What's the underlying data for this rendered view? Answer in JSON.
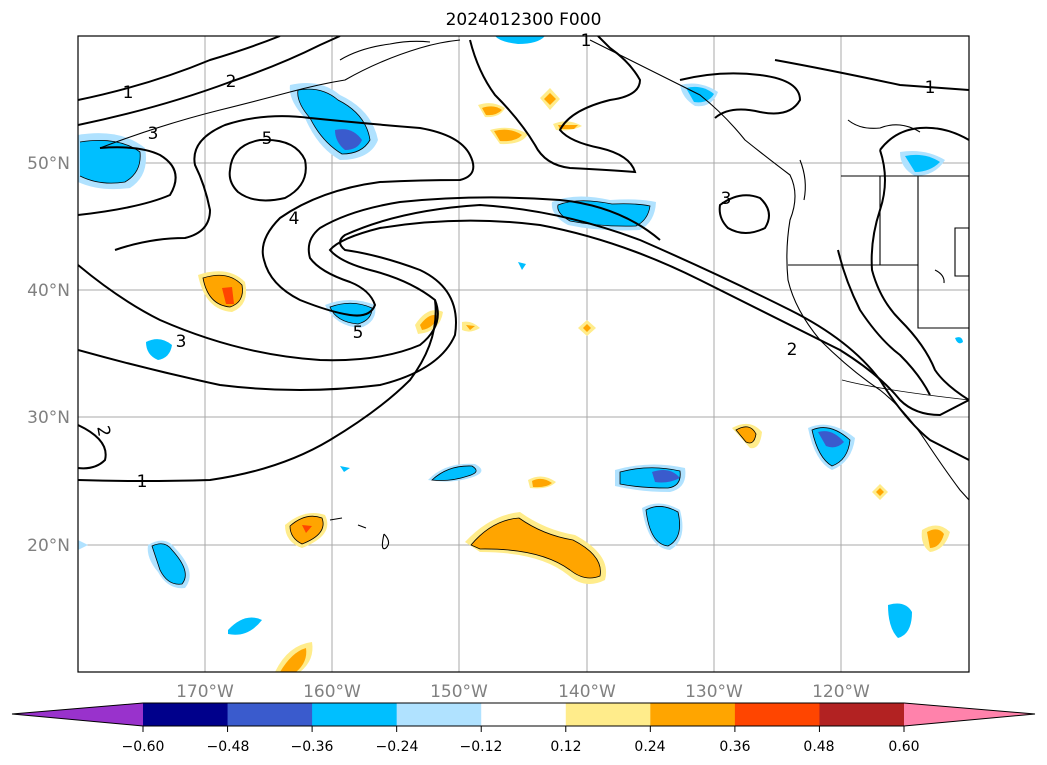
{
  "title": "2024012300 F000",
  "map": {
    "lat_labels": [
      "50°N",
      "40°N",
      "30°N",
      "20°N"
    ],
    "lon_labels": [
      "170°W",
      "160°W",
      "150°W",
      "140°W",
      "130°W",
      "120°W"
    ],
    "contour_labels": [
      "1",
      "2",
      "3",
      "5",
      "4",
      "3",
      "5",
      "3",
      "2",
      "1",
      "1",
      "2",
      "1"
    ],
    "label_color": "#808080",
    "grid_color": "#a0a0a0"
  },
  "colorbar": {
    "colors": [
      "#9932cc",
      "#00008b",
      "#3a5bcd",
      "#00bfff",
      "#b0e2ff",
      "#ffffff",
      "#ffec8b",
      "#ffa500",
      "#ff4500",
      "#b22222",
      "#ff82ab"
    ],
    "tick_labels": [
      "−0.60",
      "−0.48",
      "−0.36",
      "−0.24",
      "−0.12",
      "0.12",
      "0.24",
      "0.36",
      "0.48",
      "0.60"
    ]
  }
}
